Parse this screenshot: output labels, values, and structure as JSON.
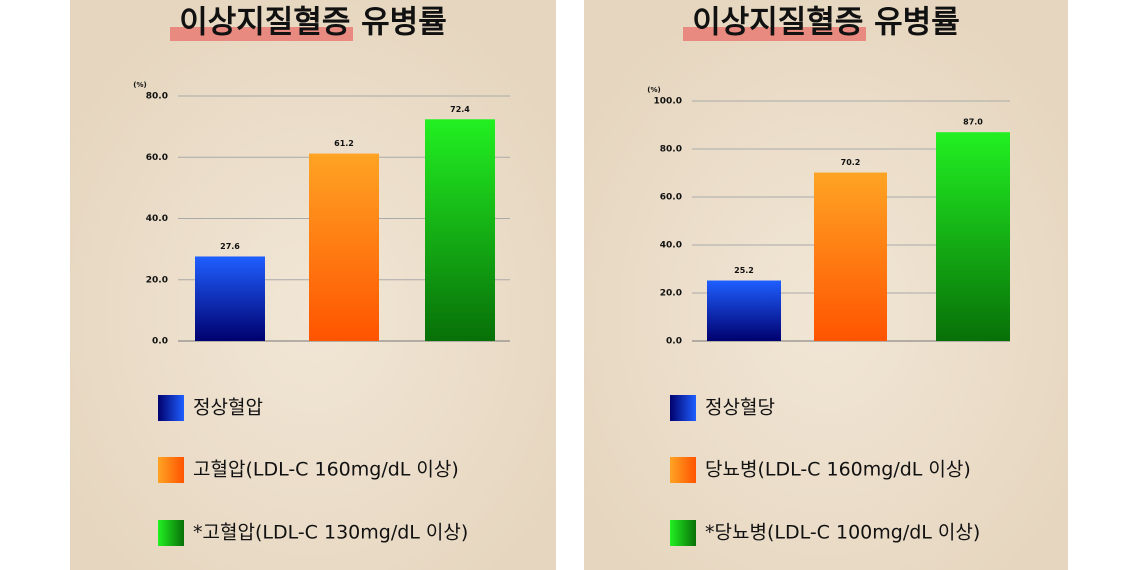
{
  "chart_data": [
    {
      "type": "bar",
      "title": "이상지질혈증 유병률",
      "y_label": "(%)",
      "categories": [
        "정상혈압",
        "고혈압(LDL-C 160mg/dL 이상)",
        "*고혈압(LDL-C 130mg/dL 이상)"
      ],
      "values": [
        27.6,
        61.2,
        72.4
      ],
      "colors": [
        [
          "#1f5fff",
          "#00006e"
        ],
        [
          "#ffa424",
          "#ff5400"
        ],
        [
          "#22f022",
          "#087008"
        ]
      ],
      "ylim": [
        0,
        80
      ],
      "yticks": [
        {
          "value": 0,
          "label": "0.0"
        },
        {
          "value": 20,
          "label": "20.0"
        },
        {
          "value": 40,
          "label": "40.0"
        },
        {
          "value": 60,
          "label": "60.0"
        },
        {
          "value": 80,
          "label": "80.0"
        }
      ],
      "grid": true
    },
    {
      "type": "bar",
      "title": "이상지질혈증 유병률",
      "y_label": "(%)",
      "categories": [
        "정상혈당",
        "당뇨병(LDL-C 160mg/dL 이상)",
        "*당뇨병(LDL-C 100mg/dL 이상)"
      ],
      "values": [
        25.2,
        70.2,
        87
      ],
      "value_labels": [
        "25.2",
        "70.2",
        "87.0"
      ],
      "colors": [
        [
          "#1f5fff",
          "#00006e"
        ],
        [
          "#ffa424",
          "#ff5400"
        ],
        [
          "#22f022",
          "#087008"
        ]
      ],
      "ylim": [
        0,
        100
      ],
      "yticks": [
        {
          "value": 0,
          "label": "0.0"
        },
        {
          "value": 20,
          "label": "20.0"
        },
        {
          "value": 40,
          "label": "40.0"
        },
        {
          "value": 60,
          "label": "60.0"
        },
        {
          "value": 80,
          "label": "80.0"
        },
        {
          "value": 100,
          "label": "100.0"
        }
      ],
      "grid": true
    }
  ]
}
